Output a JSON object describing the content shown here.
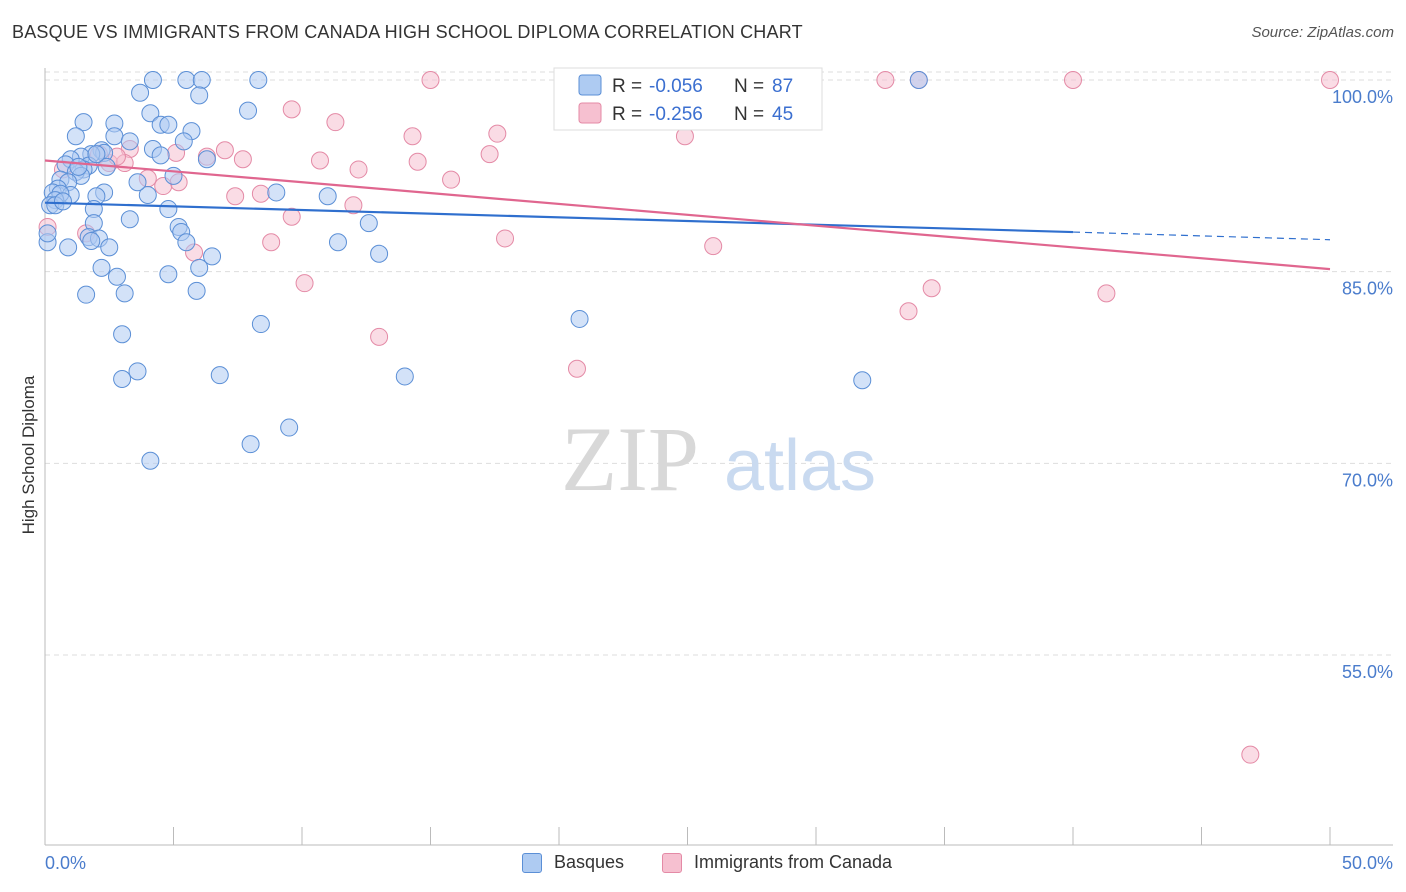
{
  "title": "BASQUE VS IMMIGRANTS FROM CANADA HIGH SCHOOL DIPLOMA CORRELATION CHART",
  "source": "Source: ZipAtlas.com",
  "watermark": {
    "zip": "ZIP",
    "atlas": "atlas"
  },
  "colors": {
    "blue_fill": "#aecbf2",
    "blue_stroke": "#5b8fd6",
    "blue_line": "#2f6fce",
    "pink_fill": "#f6c0d0",
    "pink_stroke": "#e48aa6",
    "pink_line": "#e0668f",
    "tick_text": "#4a7ccc",
    "grid": "#dddddd"
  },
  "stats_legend": [
    {
      "r_label": "R =",
      "r_value": "-0.056",
      "n_label": "N =",
      "n_value": "87"
    },
    {
      "r_label": "R =",
      "r_value": "-0.256",
      "n_label": "N =",
      "n_value": "45"
    }
  ],
  "chart_data": {
    "type": "scatter",
    "title": "BASQUE VS IMMIGRANTS FROM CANADA HIGH SCHOOL DIPLOMA CORRELATION CHART",
    "xlabel": "",
    "ylabel": "High School Diploma",
    "xlim": [
      0,
      50
    ],
    "ylim": [
      40,
      103
    ],
    "x_tick_labels": [
      "0.0%",
      "50.0%"
    ],
    "y_ticks": [
      55,
      70,
      85,
      100
    ],
    "y_tick_labels": [
      "55.0%",
      "70.0%",
      "85.0%",
      "100.0%"
    ],
    "grid": "horizontal dashed",
    "legend_position": "top-center and bottom",
    "series": [
      {
        "name": "Basques",
        "r": -0.056,
        "n": 87,
        "trend": {
          "x0": 0,
          "y0": 90.4,
          "x1": 40,
          "y1": 88.1,
          "dashed_to": 50,
          "dashed_y": 87.5
        },
        "points": [
          [
            4.2,
            100
          ],
          [
            5.5,
            100
          ],
          [
            6.1,
            100
          ],
          [
            8.3,
            100
          ],
          [
            3.7,
            99
          ],
          [
            6.0,
            98.8
          ],
          [
            7.9,
            97.6
          ],
          [
            4.1,
            97.4
          ],
          [
            1.5,
            96.7
          ],
          [
            2.7,
            96.6
          ],
          [
            4.5,
            96.5
          ],
          [
            4.8,
            96.5
          ],
          [
            5.7,
            96
          ],
          [
            1.2,
            95.6
          ],
          [
            2.7,
            95.6
          ],
          [
            3.3,
            95.2
          ],
          [
            5.4,
            95.2
          ],
          [
            4.2,
            94.6
          ],
          [
            2.2,
            94.5
          ],
          [
            2.3,
            94.3
          ],
          [
            1.8,
            94.2
          ],
          [
            1.4,
            94.0
          ],
          [
            4.5,
            94.1
          ],
          [
            1.0,
            93.8
          ],
          [
            6.3,
            93.8
          ],
          [
            0.8,
            93.4
          ],
          [
            1.7,
            93.3
          ],
          [
            2.4,
            93.2
          ],
          [
            1.5,
            93.0
          ],
          [
            1.2,
            92.8
          ],
          [
            1.4,
            92.5
          ],
          [
            5.0,
            92.5
          ],
          [
            0.6,
            92.2
          ],
          [
            0.9,
            92.0
          ],
          [
            0.5,
            91.5
          ],
          [
            0.3,
            91.2
          ],
          [
            2.3,
            91.2
          ],
          [
            9.0,
            91.2
          ],
          [
            1.0,
            91.0
          ],
          [
            0.6,
            91.1
          ],
          [
            2.0,
            90.9
          ],
          [
            4.0,
            91.0
          ],
          [
            11.0,
            90.9
          ],
          [
            0.4,
            90.6
          ],
          [
            0.2,
            90.2
          ],
          [
            1.9,
            89.9
          ],
          [
            4.8,
            89.9
          ],
          [
            3.3,
            89.1
          ],
          [
            12.6,
            88.8
          ],
          [
            1.9,
            88.8
          ],
          [
            5.2,
            88.5
          ],
          [
            5.3,
            88.1
          ],
          [
            1.7,
            87.7
          ],
          [
            2.1,
            87.6
          ],
          [
            1.8,
            87.4
          ],
          [
            5.5,
            87.3
          ],
          [
            11.4,
            87.3
          ],
          [
            0.1,
            87.3
          ],
          [
            0.9,
            86.9
          ],
          [
            2.5,
            86.9
          ],
          [
            6.5,
            86.2
          ],
          [
            13.0,
            86.4
          ],
          [
            2.2,
            85.3
          ],
          [
            4.8,
            84.8
          ],
          [
            6.0,
            85.3
          ],
          [
            2.8,
            84.6
          ],
          [
            5.9,
            83.5
          ],
          [
            3.1,
            83.3
          ],
          [
            1.6,
            83.2
          ],
          [
            8.4,
            80.9
          ],
          [
            20.8,
            81.3
          ],
          [
            3.0,
            80.1
          ],
          [
            3.6,
            77.2
          ],
          [
            6.8,
            76.9
          ],
          [
            14.0,
            76.8
          ],
          [
            3.0,
            76.6
          ],
          [
            31.8,
            76.5
          ],
          [
            9.5,
            72.8
          ],
          [
            8.0,
            71.5
          ],
          [
            4.1,
            70.2
          ],
          [
            0.1,
            88.0
          ],
          [
            0.4,
            90.2
          ],
          [
            0.7,
            90.5
          ],
          [
            1.3,
            93.2
          ],
          [
            2.0,
            94.2
          ],
          [
            3.6,
            92.0
          ],
          [
            34.0,
            100
          ]
        ]
      },
      {
        "name": "Immigrants from Canada",
        "r": -0.256,
        "n": 45,
        "trend": {
          "x0": 0,
          "y0": 93.7,
          "x1": 50,
          "y1": 85.2
        },
        "points": [
          [
            15.0,
            100
          ],
          [
            32.7,
            100
          ],
          [
            34.0,
            100
          ],
          [
            40.0,
            100
          ],
          [
            50.0,
            100
          ],
          [
            9.6,
            97.7
          ],
          [
            11.3,
            96.7
          ],
          [
            17.6,
            95.8
          ],
          [
            14.3,
            95.6
          ],
          [
            24.9,
            95.6
          ],
          [
            3.3,
            94.6
          ],
          [
            5.1,
            94.3
          ],
          [
            7.0,
            94.5
          ],
          [
            17.3,
            94.2
          ],
          [
            2.1,
            94.2
          ],
          [
            6.3,
            94.0
          ],
          [
            2.5,
            93.5
          ],
          [
            3.1,
            93.5
          ],
          [
            7.7,
            93.8
          ],
          [
            10.7,
            93.7
          ],
          [
            14.5,
            93.6
          ],
          [
            12.2,
            93.0
          ],
          [
            0.7,
            93.0
          ],
          [
            4.0,
            92.3
          ],
          [
            5.2,
            92.0
          ],
          [
            15.8,
            92.2
          ],
          [
            4.6,
            91.7
          ],
          [
            7.4,
            90.9
          ],
          [
            8.4,
            91.1
          ],
          [
            12.0,
            90.2
          ],
          [
            9.6,
            89.3
          ],
          [
            2.8,
            94.0
          ],
          [
            17.9,
            87.6
          ],
          [
            8.8,
            87.3
          ],
          [
            26.0,
            87.0
          ],
          [
            5.8,
            86.5
          ],
          [
            10.1,
            84.1
          ],
          [
            34.5,
            83.7
          ],
          [
            41.3,
            83.3
          ],
          [
            33.6,
            81.9
          ],
          [
            13.0,
            79.9
          ],
          [
            20.7,
            77.4
          ],
          [
            0.1,
            88.5
          ],
          [
            1.6,
            88.0
          ],
          [
            46.9,
            47.2
          ]
        ]
      }
    ]
  }
}
